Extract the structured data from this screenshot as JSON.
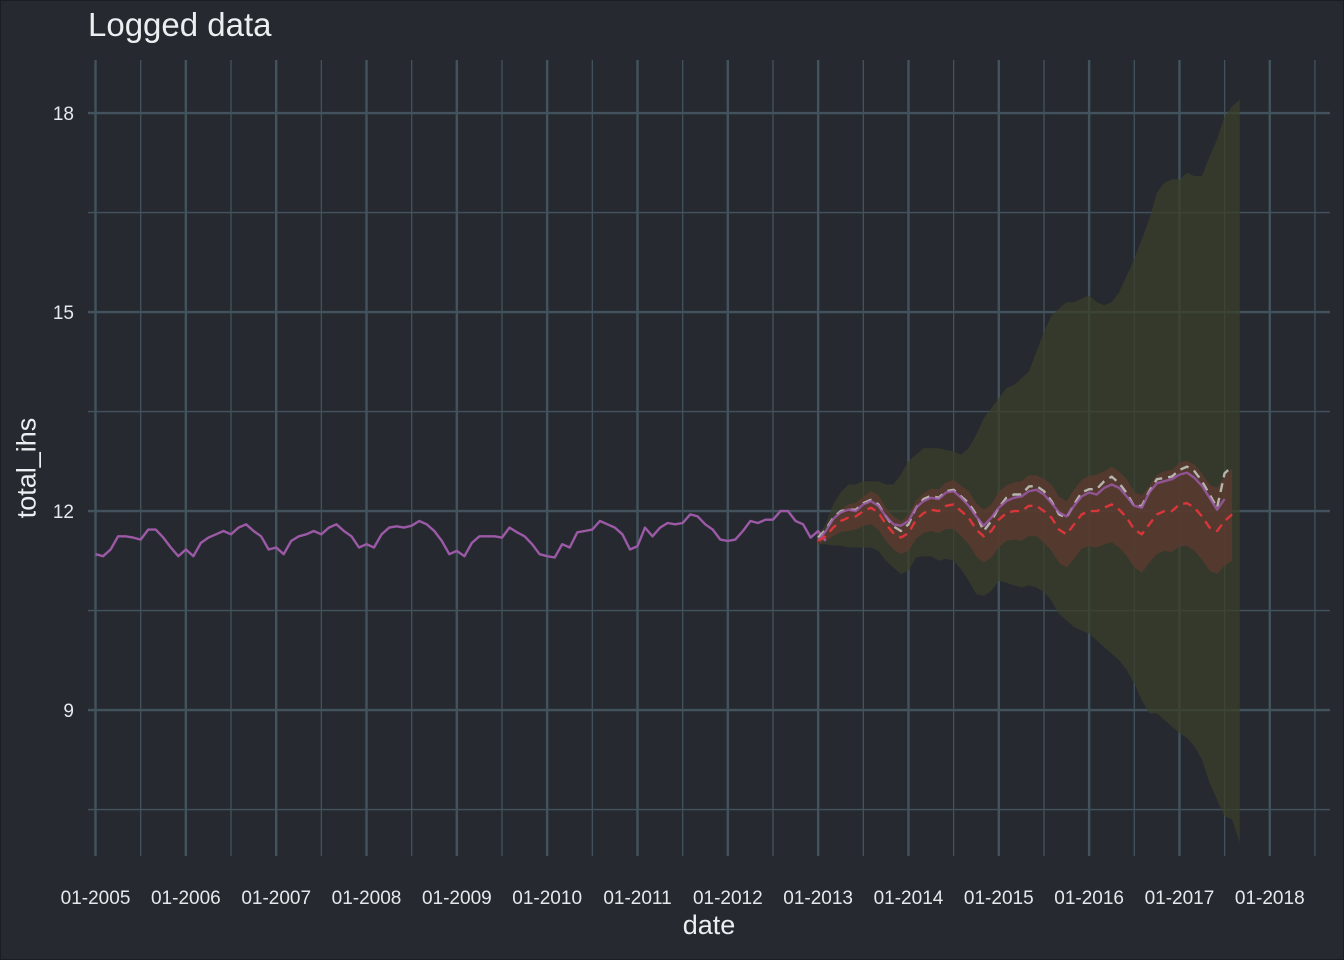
{
  "colors": {
    "background": "#262a30",
    "grid": "#43535d",
    "text": "#eceff1",
    "actual": "#9b59a6",
    "forecast_mean": "#d9363b",
    "forecast_alt": "#b5b5ad",
    "band_outer": "#3a3f2a",
    "band_inner": "#5b3a2f"
  },
  "chart_data": {
    "type": "line",
    "title": "Logged data",
    "xlabel": "date",
    "ylabel": "total_ihs",
    "x_ticks": [
      "01-2005",
      "01-2006",
      "01-2007",
      "01-2008",
      "01-2009",
      "01-2010",
      "01-2011",
      "01-2012",
      "01-2013",
      "01-2014",
      "01-2015",
      "01-2016",
      "01-2017",
      "01-2018"
    ],
    "y_ticks": [
      9,
      12,
      15,
      18
    ],
    "xlim": [
      "2004-12",
      "2018-09"
    ],
    "ylim": [
      6.8,
      18.8
    ],
    "grid": true,
    "legend": "none",
    "series": [
      {
        "role": "actual",
        "start": "2005-01",
        "values": [
          11.35,
          11.32,
          11.42,
          11.62,
          11.62,
          11.6,
          11.57,
          11.72,
          11.72,
          11.6,
          11.45,
          11.32,
          11.42,
          11.32,
          11.52,
          11.6,
          11.65,
          11.7,
          11.65,
          11.75,
          11.8,
          11.7,
          11.62,
          11.42,
          11.45,
          11.35,
          11.55,
          11.62,
          11.65,
          11.7,
          11.65,
          11.75,
          11.8,
          11.7,
          11.62,
          11.45,
          11.5,
          11.45,
          11.65,
          11.75,
          11.77,
          11.75,
          11.78,
          11.85,
          11.8,
          11.7,
          11.55,
          11.35,
          11.4,
          11.32,
          11.52,
          11.62,
          11.62,
          11.62,
          11.6,
          11.75,
          11.68,
          11.62,
          11.5,
          11.35,
          11.32,
          11.3,
          11.5,
          11.45,
          11.68,
          11.7,
          11.72,
          11.85,
          11.8,
          11.75,
          11.65,
          11.42,
          11.47,
          11.75,
          11.62,
          11.75,
          11.82,
          11.8,
          11.82,
          11.95,
          11.92,
          11.8,
          11.72,
          11.57,
          11.55,
          11.57,
          11.7,
          11.85,
          11.82,
          11.87,
          11.87,
          12.0,
          12.0,
          11.85,
          11.8,
          11.6,
          11.7,
          11.55
        ]
      },
      {
        "role": "forecast_alt",
        "start": "2013-01",
        "values": [
          11.6,
          11.72,
          11.9,
          12.0,
          12.02,
          12.02,
          12.12,
          12.17,
          12.1,
          11.92,
          11.77,
          11.7,
          11.8,
          12.05,
          12.18,
          12.23,
          12.2,
          12.3,
          12.32,
          12.22,
          12.12,
          11.95,
          11.7,
          11.85,
          12.05,
          12.2,
          12.25,
          12.25,
          12.37,
          12.38,
          12.3,
          12.15,
          11.95,
          11.9,
          12.1,
          12.28,
          12.33,
          12.33,
          12.45,
          12.52,
          12.42,
          12.27,
          12.07,
          12.08,
          12.3,
          12.48,
          12.5,
          12.52,
          12.62,
          12.67,
          12.6,
          12.45,
          12.25,
          12.05,
          12.57,
          12.67
        ]
      },
      {
        "role": "actual_overlap",
        "start": "2013-01",
        "values": [
          11.55,
          11.7,
          11.88,
          11.98,
          12.02,
          12.0,
          12.1,
          12.15,
          12.08,
          11.92,
          11.8,
          11.78,
          11.85,
          12.05,
          12.15,
          12.2,
          12.18,
          12.28,
          12.3,
          12.2,
          12.08,
          11.92,
          11.78,
          11.9,
          12.05,
          12.15,
          12.2,
          12.22,
          12.3,
          12.32,
          12.25,
          12.12,
          11.98,
          11.92,
          12.08,
          12.22,
          12.28,
          12.25,
          12.35,
          12.4,
          12.35,
          12.22,
          12.08,
          12.05,
          12.28,
          12.42,
          12.45,
          12.48,
          12.55,
          12.58,
          12.5,
          12.38,
          12.2,
          12.02,
          12.18
        ]
      },
      {
        "role": "forecast_mean",
        "start": "2013-01",
        "values": [
          11.55,
          11.62,
          11.75,
          11.85,
          11.9,
          11.92,
          12.0,
          12.05,
          11.98,
          11.8,
          11.67,
          11.6,
          11.67,
          11.87,
          11.97,
          12.02,
          12.0,
          12.08,
          12.1,
          12.0,
          11.9,
          11.72,
          11.62,
          11.7,
          11.87,
          11.97,
          12.0,
          12.0,
          12.08,
          12.08,
          12.0,
          11.9,
          11.72,
          11.65,
          11.8,
          11.95,
          12.0,
          12.0,
          12.05,
          12.1,
          12.02,
          11.9,
          11.72,
          11.65,
          11.8,
          11.95,
          12.0,
          12.0,
          12.1,
          12.12,
          12.05,
          11.92,
          11.75,
          11.7,
          11.85,
          11.95
        ]
      },
      {
        "role": "band_inner",
        "start": "2013-01",
        "lower": [
          11.5,
          11.55,
          11.62,
          11.68,
          11.7,
          11.72,
          11.78,
          11.8,
          11.72,
          11.55,
          11.42,
          11.35,
          11.4,
          11.58,
          11.67,
          11.7,
          11.67,
          11.73,
          11.73,
          11.62,
          11.5,
          11.32,
          11.22,
          11.3,
          11.45,
          11.55,
          11.57,
          11.55,
          11.62,
          11.62,
          11.52,
          11.4,
          11.22,
          11.15,
          11.28,
          11.43,
          11.47,
          11.45,
          11.5,
          11.53,
          11.45,
          11.32,
          11.15,
          11.07,
          11.22,
          11.35,
          11.4,
          11.38,
          11.47,
          11.48,
          11.4,
          11.27,
          11.1,
          11.05,
          11.18,
          11.25
        ],
        "upper": [
          11.6,
          11.7,
          11.88,
          12.02,
          12.1,
          12.12,
          12.22,
          12.3,
          12.24,
          12.05,
          11.92,
          11.85,
          11.94,
          12.16,
          12.27,
          12.34,
          12.33,
          12.43,
          12.47,
          12.38,
          12.3,
          12.12,
          12.02,
          12.1,
          12.29,
          12.39,
          12.43,
          12.45,
          12.54,
          12.54,
          12.48,
          12.4,
          12.22,
          12.15,
          12.32,
          12.47,
          12.53,
          12.55,
          12.6,
          12.67,
          12.59,
          12.48,
          12.29,
          12.23,
          12.38,
          12.55,
          12.6,
          12.62,
          12.73,
          12.76,
          12.7,
          12.57,
          12.4,
          12.35,
          12.52,
          12.65
        ]
      },
      {
        "role": "band_outer",
        "start": "2013-01",
        "lower": [
          11.5,
          11.5,
          11.48,
          11.48,
          11.45,
          11.45,
          11.45,
          11.45,
          11.4,
          11.25,
          11.15,
          11.05,
          11.1,
          11.3,
          11.32,
          11.32,
          11.25,
          11.28,
          11.25,
          11.12,
          10.95,
          10.75,
          10.72,
          10.8,
          10.95,
          10.92,
          10.88,
          10.85,
          10.88,
          10.85,
          10.78,
          10.65,
          10.45,
          10.35,
          10.25,
          10.2,
          10.15,
          10.05,
          9.95,
          9.85,
          9.75,
          9.6,
          9.4,
          9.15,
          8.95,
          8.95,
          8.85,
          8.75,
          8.65,
          8.58,
          8.45,
          8.25,
          7.9,
          7.65,
          7.4,
          7.35,
          7.0
        ],
        "upper": [
          11.65,
          11.8,
          12.1,
          12.28,
          12.4,
          12.4,
          12.45,
          12.45,
          12.45,
          12.4,
          12.4,
          12.55,
          12.75,
          12.85,
          12.95,
          12.95,
          12.95,
          12.92,
          12.9,
          12.85,
          12.95,
          13.15,
          13.4,
          13.55,
          13.7,
          13.85,
          13.9,
          14.0,
          14.1,
          14.4,
          14.7,
          14.95,
          15.05,
          15.15,
          15.15,
          15.2,
          15.25,
          15.15,
          15.1,
          15.15,
          15.3,
          15.55,
          15.8,
          16.1,
          16.4,
          16.8,
          16.95,
          17.0,
          17.0,
          17.1,
          17.05,
          17.05,
          17.35,
          17.6,
          17.95,
          18.1,
          18.2
        ]
      }
    ]
  }
}
